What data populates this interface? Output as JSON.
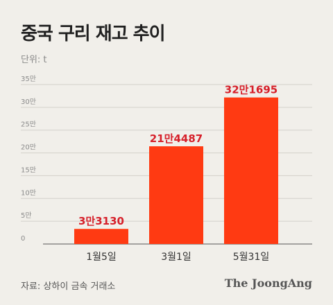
{
  "title": "중국 구리 재고 추이",
  "unit_label": "단위: t",
  "source": "자료: 상하이 금속 거래소",
  "brand": "The JoongAng",
  "colors": {
    "bar": "#ff3a12",
    "label": "#d6202a",
    "grid": "#d3d0c9",
    "axis": "#555555",
    "tick": "#8a8a8a",
    "background": "#f1efea"
  },
  "chart_data": {
    "type": "bar",
    "categories": [
      "1월5일",
      "3월1일",
      "5월31일"
    ],
    "values": [
      33130,
      214487,
      321695
    ],
    "value_labels": [
      "3만3130",
      "21만4487",
      "32만1695"
    ],
    "title": "중국 구리 재고 추이",
    "ylabel": "단위: t",
    "ylim": [
      0,
      350000
    ],
    "yticks": [
      0,
      50000,
      100000,
      150000,
      200000,
      250000,
      300000,
      350000
    ],
    "ytick_labels": [
      "0",
      "5만",
      "10만",
      "15만",
      "20만",
      "25만",
      "30만",
      "35만"
    ],
    "grid": true,
    "legend": "none"
  }
}
